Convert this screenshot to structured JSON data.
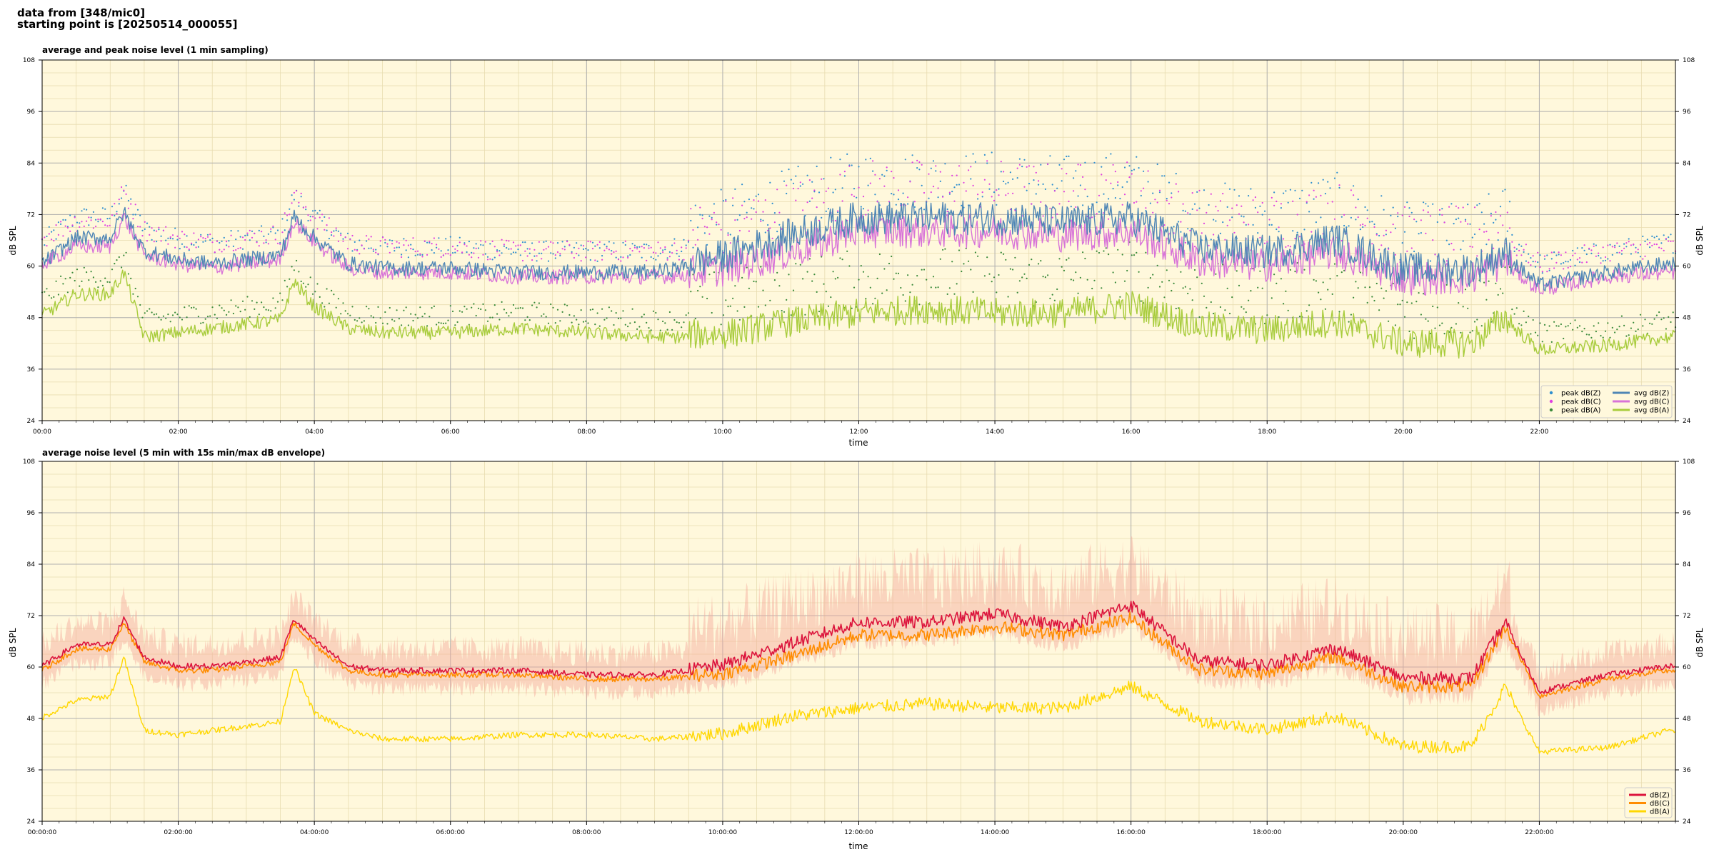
{
  "header": {
    "line1": "data from [348/mic0]",
    "line2": "starting point is [20250514_000055]"
  },
  "chart_data": [
    {
      "type": "line",
      "title": "average and peak noise level (1 min sampling)",
      "xlabel": "time",
      "ylabel": "dB SPL",
      "ylim": [
        24,
        108
      ],
      "xlim_hours": [
        0,
        24
      ],
      "yticks": [
        "24",
        "36",
        "48",
        "60",
        "72",
        "84",
        "96",
        "108"
      ],
      "xticks": [
        "00:00",
        "02:00",
        "04:00",
        "06:00",
        "08:00",
        "10:00",
        "12:00",
        "14:00",
        "16:00",
        "18:00",
        "20:00",
        "22:00"
      ],
      "grid": true,
      "legend_position": "bottom-right",
      "legend": [
        "peak dB(Z)",
        "peak dB(C)",
        "peak dB(A)",
        "avg dB(Z)",
        "avg dB(C)",
        "avg dB(A)"
      ],
      "colors": {
        "peakZ": "#2f8fcf",
        "peakC": "#e040e0",
        "peakA": "#3a8a3a",
        "avgZ": "#4f86b5",
        "avgC": "#d873d8",
        "avgA": "#a8cc3c"
      },
      "x_hours": [
        0,
        0.5,
        1.0,
        1.2,
        1.5,
        2.0,
        2.5,
        3.0,
        3.5,
        3.7,
        4.0,
        4.5,
        5.0,
        6.0,
        7.0,
        8.0,
        9.0,
        10.0,
        11.0,
        12.0,
        13.0,
        14.0,
        15.0,
        16.0,
        17.0,
        18.0,
        19.0,
        20.0,
        21.0,
        21.5,
        22.0,
        23.0,
        23.9
      ],
      "series": [
        {
          "name": "avg dB(Z)",
          "values": [
            60,
            66,
            66,
            72,
            63,
            61,
            60,
            61,
            62,
            71,
            66,
            60,
            59,
            59,
            58,
            58,
            58,
            61,
            66,
            70,
            70,
            70,
            69,
            70,
            63,
            62,
            65,
            58,
            58,
            62,
            55,
            58,
            60
          ]
        },
        {
          "name": "avg dB(C)",
          "values": [
            60,
            64,
            64,
            71,
            62,
            60,
            59,
            60,
            61,
            70,
            65,
            59,
            58,
            58,
            57,
            57,
            57,
            58,
            62,
            67,
            67,
            67,
            66,
            67,
            60,
            59,
            62,
            56,
            56,
            60,
            54,
            57,
            58
          ]
        },
        {
          "name": "avg dB(A)",
          "values": [
            48,
            53,
            53,
            58,
            43,
            44,
            45,
            46,
            47,
            56,
            50,
            45,
            44,
            44,
            45,
            44,
            43,
            43,
            46,
            48,
            49,
            48,
            48,
            50,
            45,
            44,
            46,
            41,
            41,
            47,
            40,
            41,
            43
          ]
        }
      ]
    },
    {
      "type": "line",
      "title": "average noise level (5 min with 15s min/max dB envelope)",
      "xlabel": "time",
      "ylabel": "dB SPL",
      "ylim": [
        24,
        108
      ],
      "xlim_hours": [
        0,
        24
      ],
      "yticks": [
        "24",
        "36",
        "48",
        "60",
        "72",
        "84",
        "96",
        "108"
      ],
      "xticks": [
        "00:00:00",
        "02:00:00",
        "04:00:00",
        "06:00:00",
        "08:00:00",
        "10:00:00",
        "12:00:00",
        "14:00:00",
        "16:00:00",
        "18:00:00",
        "20:00:00",
        "22:00:00"
      ],
      "grid": true,
      "legend_position": "bottom-right",
      "legend": [
        "dB(Z)",
        "dB(C)",
        "dB(A)"
      ],
      "colors": {
        "Z": "#dc143c",
        "C": "#ff8c00",
        "A": "#ffd700",
        "envelope": "#f4a99a"
      },
      "x_hours": [
        0,
        0.5,
        1.0,
        1.2,
        1.5,
        2.0,
        2.5,
        3.0,
        3.5,
        3.7,
        4.0,
        4.5,
        5.0,
        6.0,
        7.0,
        8.0,
        9.0,
        10.0,
        11.0,
        12.0,
        13.0,
        14.0,
        15.0,
        16.0,
        17.0,
        18.0,
        19.0,
        20.0,
        21.0,
        21.5,
        22.0,
        23.0,
        23.9
      ],
      "series": [
        {
          "name": "dB(Z)",
          "values": [
            60,
            65,
            65,
            71,
            62,
            60,
            60,
            61,
            62,
            71,
            66,
            60,
            59,
            59,
            59,
            58,
            58,
            60,
            65,
            70,
            70,
            72,
            69,
            74,
            61,
            60,
            64,
            57,
            57,
            70,
            54,
            58,
            60
          ]
        },
        {
          "name": "dB(C)",
          "values": [
            59,
            64,
            64,
            70,
            61,
            59,
            59,
            60,
            61,
            70,
            65,
            59,
            58,
            58,
            58,
            57,
            57,
            58,
            62,
            67,
            67,
            69,
            67,
            71,
            59,
            58,
            62,
            55,
            55,
            69,
            53,
            57,
            59
          ]
        },
        {
          "name": "dB(A)",
          "values": [
            48,
            52,
            53,
            62,
            45,
            44,
            45,
            46,
            47,
            60,
            49,
            45,
            43,
            43,
            44,
            44,
            43,
            44,
            48,
            50,
            51,
            50,
            50,
            55,
            47,
            45,
            48,
            41,
            41,
            55,
            40,
            41,
            45
          ]
        }
      ]
    }
  ]
}
